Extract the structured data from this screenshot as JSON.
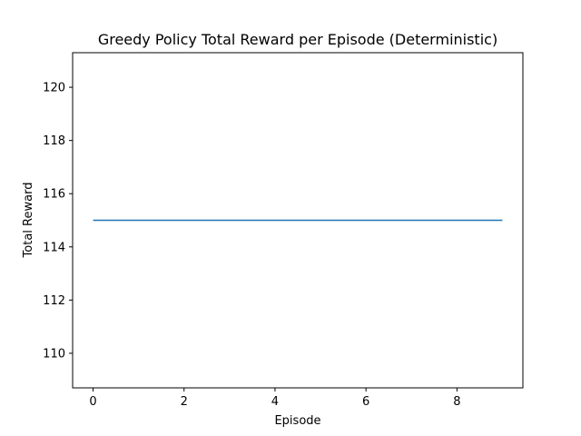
{
  "chart_data": {
    "type": "line",
    "title": "Greedy Policy Total Reward per Episode (Deterministic)",
    "xlabel": "Episode",
    "ylabel": "Total Reward",
    "xlim": [
      -0.45,
      9.45
    ],
    "ylim": [
      108.7,
      121.3
    ],
    "xticks": [
      0,
      2,
      4,
      6,
      8
    ],
    "yticks": [
      110,
      112,
      114,
      116,
      118,
      120
    ],
    "grid": false,
    "legend": "none",
    "series": [
      {
        "color": "#1f77b4",
        "x": [
          0,
          1,
          2,
          3,
          4,
          5,
          6,
          7,
          8,
          9
        ],
        "y": [
          115,
          115,
          115,
          115,
          115,
          115,
          115,
          115,
          115,
          115
        ]
      }
    ]
  }
}
